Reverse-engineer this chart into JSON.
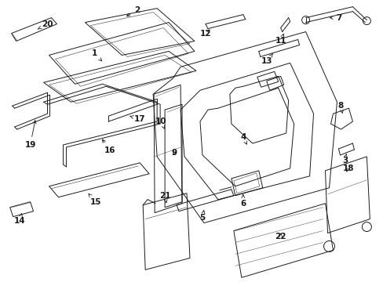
{
  "bg_color": "#ffffff",
  "line_color": "#1a1a1a",
  "lw": 0.7,
  "fontsize": 7.5
}
